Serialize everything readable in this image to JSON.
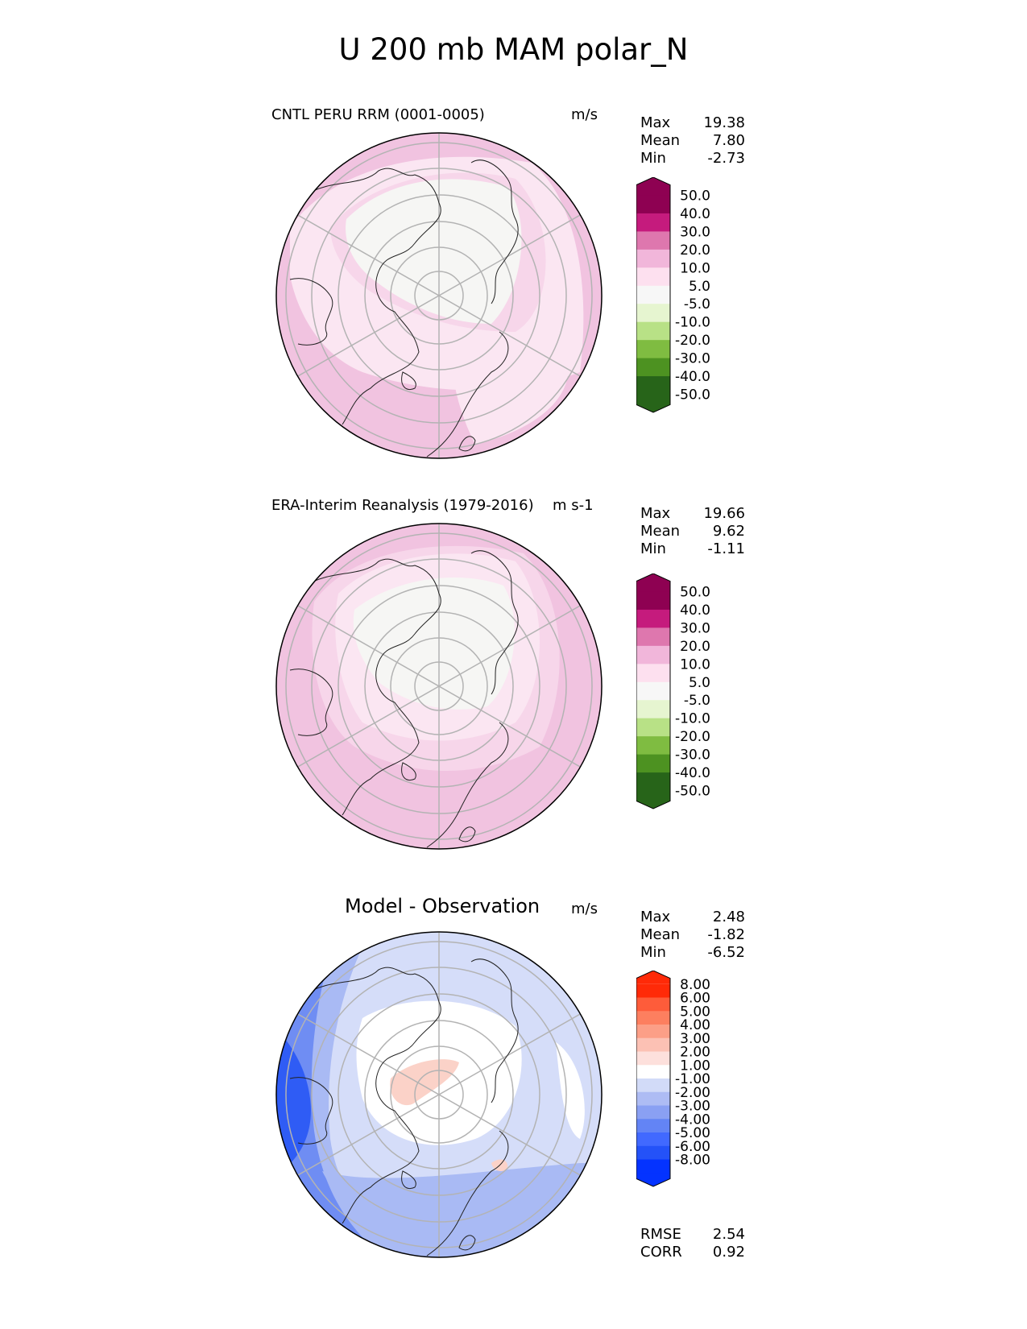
{
  "title": "U 200 mb MAM polar_N",
  "panels": [
    {
      "title": "CNTL PERU RRM (0001-0005)",
      "units": "m/s",
      "stats": {
        "max_label": "Max",
        "max": "19.38",
        "mean_label": "Mean",
        "mean": "7.80",
        "min_label": "Min",
        "min": "-2.73"
      },
      "colorbar": {
        "colors": [
          "#276419",
          "#4d9221",
          "#7fbc41",
          "#b8e186",
          "#e6f5d0",
          "#f7f7f7",
          "#fde0ef",
          "#f1b6da",
          "#de77ae",
          "#c51b7d",
          "#8e0152"
        ],
        "top_color": "#8e0152",
        "bottom_color": "#276419",
        "tick_labels": [
          "50.0",
          "40.0",
          "30.0",
          "20.0",
          "10.0",
          "5.0",
          "-5.0",
          "-10.0",
          "-20.0",
          "-30.0",
          "-40.0",
          "-50.0"
        ]
      }
    },
    {
      "title": "ERA-Interim Reanalysis (1979-2016)",
      "units": "m s-1",
      "stats": {
        "max_label": "Max",
        "max": "19.66",
        "mean_label": "Mean",
        "mean": "9.62",
        "min_label": "Min",
        "min": "-1.11"
      },
      "colorbar": {
        "colors": [
          "#276419",
          "#4d9221",
          "#7fbc41",
          "#b8e186",
          "#e6f5d0",
          "#f7f7f7",
          "#fde0ef",
          "#f1b6da",
          "#de77ae",
          "#c51b7d",
          "#8e0152"
        ],
        "top_color": "#8e0152",
        "bottom_color": "#276419",
        "tick_labels": [
          "50.0",
          "40.0",
          "30.0",
          "20.0",
          "10.0",
          "5.0",
          "-5.0",
          "-10.0",
          "-20.0",
          "-30.0",
          "-40.0",
          "-50.0"
        ]
      }
    },
    {
      "title": "Model - Observation",
      "units": "m/s",
      "stats": {
        "max_label": "Max",
        "max": "2.48",
        "mean_label": "Mean",
        "mean": "-1.82",
        "min_label": "Min",
        "min": "-6.52"
      },
      "colorbar": {
        "colors": [
          "#0433ff",
          "#2452f8",
          "#4169ff",
          "#6384f5",
          "#8aa0f3",
          "#aebcf4",
          "#d2dbf8",
          "#ffffff",
          "#fde0dc",
          "#fcc1b4",
          "#fc9f87",
          "#fd7f5f",
          "#fe5c3a",
          "#ff2a08"
        ],
        "top_color": "#ff2a08",
        "bottom_color": "#0433ff",
        "tick_labels": [
          "8.00",
          "6.00",
          "5.00",
          "4.00",
          "3.00",
          "2.00",
          "1.00",
          "-1.00",
          "-2.00",
          "-3.00",
          "-4.00",
          "-5.00",
          "-6.00",
          "-8.00"
        ]
      },
      "footer": {
        "rmse_label": "RMSE",
        "rmse": "2.54",
        "corr_label": "CORR",
        "corr": "0.92"
      }
    }
  ],
  "colors": {
    "pink_outer": "#f1c3e0",
    "pink_mid": "#f7d6ea",
    "pink_light": "#fbe6f2",
    "near_white": "#f6f6f4",
    "blue_dark": "#2f5cf5",
    "blue_mid": "#6f8df3",
    "blue_light": "#a9baf4",
    "blue_pale": "#d5ddf9",
    "salmon": "#fbd2c8",
    "grid": "#b3b3b3",
    "coast": "#222222"
  }
}
